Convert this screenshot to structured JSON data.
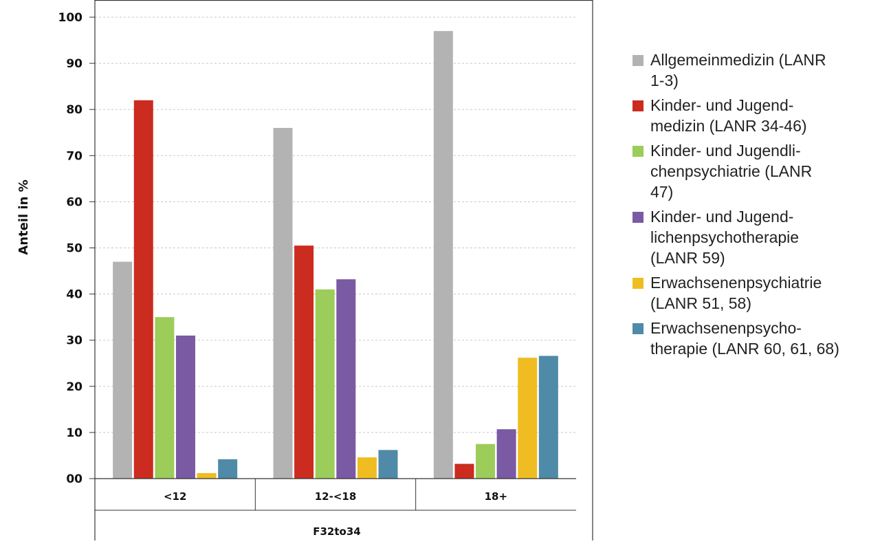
{
  "chart_data": {
    "type": "bar",
    "ylabel": "Anteil in %",
    "xlabel": "F32to34",
    "ylim": [
      0,
      100
    ],
    "yticks": [
      "00",
      "10",
      "20",
      "30",
      "40",
      "50",
      "60",
      "70",
      "80",
      "90",
      "100"
    ],
    "grid": true,
    "legend_position": "right",
    "categories": [
      "<12",
      "12-<18",
      "18+"
    ],
    "series": [
      {
        "name": "Allgemeinmedizin (LANR\n1-3)",
        "color": "#b3b3b3",
        "values": [
          47,
          76,
          97
        ]
      },
      {
        "name": "Kinder- und Jugend-\nmedizin (LANR 34-46)",
        "color": "#cc2b1f",
        "values": [
          82,
          50.5,
          3.2
        ]
      },
      {
        "name": "Kinder- und Jugendli-\nchenpsychiatrie (LANR\n47)",
        "color": "#9ccc59",
        "values": [
          35,
          41,
          7.5
        ]
      },
      {
        "name": "Kinder- und Jugend-\nlichenpsychotherapie\n(LANR 59)",
        "color": "#7a5aa3",
        "values": [
          31,
          43.2,
          10.7
        ]
      },
      {
        "name": "Erwachsenenpsychiatrie\n(LANR 51, 58)",
        "color": "#efbd22",
        "values": [
          1.2,
          4.6,
          26.2
        ]
      },
      {
        "name": "Erwachsenenpsycho-\ntherapie (LANR 60, 61, 68)",
        "color": "#4f8aa8",
        "values": [
          4.2,
          6.2,
          26.6
        ]
      }
    ]
  }
}
